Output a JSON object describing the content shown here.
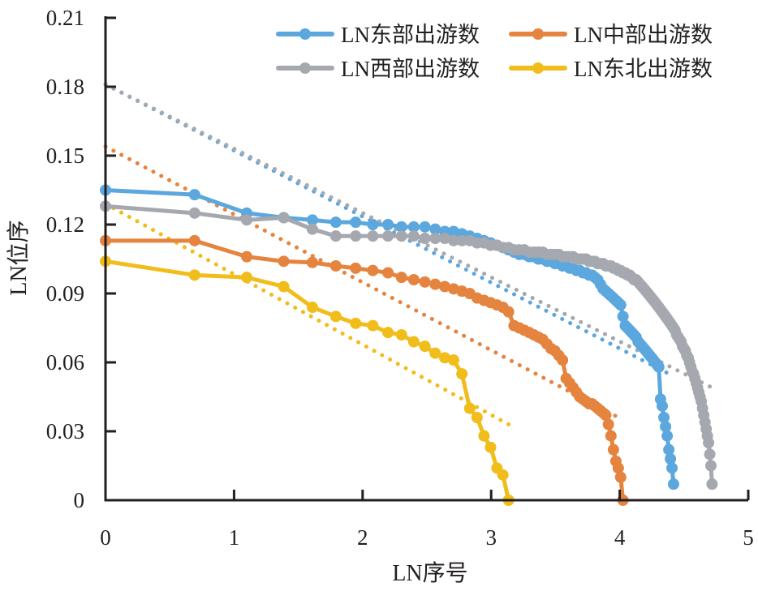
{
  "chart_data": {
    "type": "line",
    "title": "",
    "xlabel": "LN序号",
    "ylabel": "LN位序",
    "xlim": [
      0,
      5
    ],
    "ylim": [
      0,
      0.21
    ],
    "x_ticks": [
      "0",
      "1",
      "2",
      "3",
      "4",
      "5"
    ],
    "y_ticks": [
      "0",
      "0.03",
      "0.06",
      "0.09",
      "0.12",
      "0.15",
      "0.18",
      "0.21"
    ],
    "grid": false,
    "legend_position": "top-right",
    "x_rule": "ln(rank)",
    "series": [
      {
        "name": "LN东部出游数",
        "color": "#5ba7de",
        "values": [
          0.135,
          0.133,
          0.125,
          0.123,
          0.122,
          0.121,
          0.121,
          0.12,
          0.12,
          0.119,
          0.119,
          0.119,
          0.118,
          0.117,
          0.117,
          0.116,
          0.115,
          0.114,
          0.113,
          0.112,
          0.111,
          0.11,
          0.109,
          0.108,
          0.107,
          0.107,
          0.106,
          0.106,
          0.105,
          0.105,
          0.104,
          0.104,
          0.103,
          0.103,
          0.102,
          0.102,
          0.101,
          0.101,
          0.1,
          0.1,
          0.099,
          0.099,
          0.098,
          0.098,
          0.097,
          0.096,
          0.094,
          0.092,
          0.091,
          0.09,
          0.089,
          0.088,
          0.087,
          0.086,
          0.085,
          0.08,
          0.076,
          0.075,
          0.074,
          0.073,
          0.072,
          0.071,
          0.069,
          0.068,
          0.067,
          0.066,
          0.065,
          0.064,
          0.063,
          0.062,
          0.061,
          0.06,
          0.059,
          0.058,
          0.044,
          0.041,
          0.036,
          0.032,
          0.028,
          0.022,
          0.018,
          0.014,
          0.007
        ],
        "trend": [
          0.181,
          0.054
        ]
      },
      {
        "name": "LN中部出游数",
        "color": "#e5843f",
        "values": [
          0.113,
          0.113,
          0.106,
          0.104,
          0.1035,
          0.102,
          0.101,
          0.1,
          0.099,
          0.097,
          0.096,
          0.095,
          0.094,
          0.093,
          0.092,
          0.091,
          0.09,
          0.088,
          0.087,
          0.086,
          0.085,
          0.084,
          0.082,
          0.076,
          0.075,
          0.074,
          0.073,
          0.072,
          0.071,
          0.07,
          0.068,
          0.066,
          0.065,
          0.063,
          0.061,
          0.053,
          0.051,
          0.049,
          0.047,
          0.045,
          0.044,
          0.043,
          0.042,
          0.042,
          0.041,
          0.04,
          0.039,
          0.038,
          0.037,
          0.033,
          0.028,
          0.022,
          0.017,
          0.014,
          0.01,
          0.0
        ],
        "trend": [
          0.154,
          0.035
        ]
      },
      {
        "name": "LN西部出游数",
        "color": "#a5a8ae",
        "values": [
          0.128,
          0.125,
          0.122,
          0.123,
          0.118,
          0.115,
          0.115,
          0.115,
          0.115,
          0.115,
          0.115,
          0.114,
          0.114,
          0.114,
          0.113,
          0.113,
          0.113,
          0.112,
          0.112,
          0.111,
          0.111,
          0.11,
          0.11,
          0.109,
          0.109,
          0.109,
          0.108,
          0.108,
          0.108,
          0.108,
          0.107,
          0.107,
          0.107,
          0.107,
          0.106,
          0.106,
          0.106,
          0.106,
          0.105,
          0.105,
          0.105,
          0.105,
          0.104,
          0.104,
          0.104,
          0.103,
          0.103,
          0.103,
          0.102,
          0.102,
          0.102,
          0.101,
          0.101,
          0.1,
          0.1,
          0.099,
          0.099,
          0.098,
          0.098,
          0.097,
          0.096,
          0.096,
          0.095,
          0.094,
          0.093,
          0.092,
          0.091,
          0.09,
          0.089,
          0.088,
          0.087,
          0.086,
          0.085,
          0.084,
          0.083,
          0.082,
          0.081,
          0.08,
          0.079,
          0.078,
          0.077,
          0.076,
          0.075,
          0.074,
          0.072,
          0.071,
          0.07,
          0.069,
          0.067,
          0.066,
          0.065,
          0.063,
          0.062,
          0.06,
          0.058,
          0.056,
          0.055,
          0.053,
          0.051,
          0.049,
          0.047,
          0.045,
          0.043,
          0.04,
          0.037,
          0.034,
          0.031,
          0.028,
          0.025,
          0.02,
          0.015,
          0.007
        ],
        "trend": [
          0.181,
          0.049
        ]
      },
      {
        "name": "LN东北出游数",
        "color": "#f0bd1b",
        "values": [
          0.104,
          0.098,
          0.097,
          0.093,
          0.084,
          0.08,
          0.077,
          0.076,
          0.073,
          0.072,
          0.069,
          0.067,
          0.064,
          0.062,
          0.061,
          0.055,
          0.04,
          0.036,
          0.028,
          0.023,
          0.014,
          0.011,
          0.0
        ],
        "trend": [
          0.129,
          0.033
        ]
      }
    ]
  }
}
